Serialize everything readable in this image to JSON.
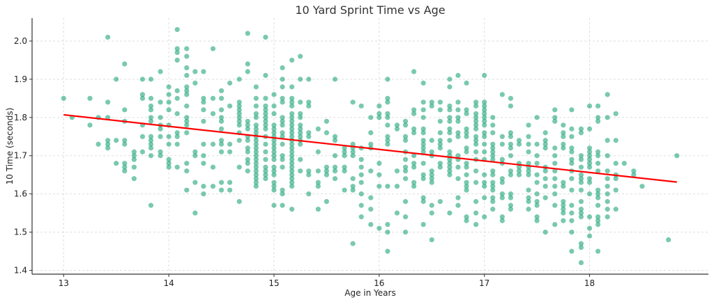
{
  "chart_data": {
    "type": "scatter",
    "title": "10 Yard Sprint Time vs Age",
    "xlabel": "Age in Years",
    "ylabel": "10 Time (seconds)",
    "xlim": [
      12.7,
      19.13
    ],
    "ylim": [
      1.39,
      2.06
    ],
    "xticks": [
      13,
      14,
      15,
      16,
      17,
      18
    ],
    "yticks": [
      1.4,
      1.5,
      1.6,
      1.7,
      1.8,
      1.9,
      2.0
    ],
    "grid": true,
    "point_color": "#1fa57a",
    "line_color": "#ff0000",
    "regression": {
      "x": [
        13.0,
        18.83
      ],
      "y": [
        1.807,
        1.631
      ]
    },
    "columns": [
      {
        "x": 13.0,
        "y": [
          1.85
        ]
      },
      {
        "x": 13.08,
        "y": [
          1.8
        ]
      },
      {
        "x": 13.25,
        "y": [
          1.85,
          1.78
        ]
      },
      {
        "x": 13.33,
        "y": [
          1.8,
          1.73
        ]
      },
      {
        "x": 13.42,
        "y": [
          2.01,
          1.84,
          1.8,
          1.74,
          1.73,
          1.72
        ]
      },
      {
        "x": 13.5,
        "y": [
          1.9,
          1.74,
          1.68
        ]
      },
      {
        "x": 13.58,
        "y": [
          1.94,
          1.82,
          1.79,
          1.74,
          1.73,
          1.68,
          1.67,
          1.66
        ]
      },
      {
        "x": 13.67,
        "y": [
          1.71,
          1.7,
          1.69,
          1.67,
          1.64
        ]
      },
      {
        "x": 13.75,
        "y": [
          1.9,
          1.86,
          1.85,
          1.78,
          1.75,
          1.71
        ]
      },
      {
        "x": 13.83,
        "y": [
          1.9,
          1.85,
          1.83,
          1.82,
          1.8,
          1.79,
          1.75,
          1.74,
          1.73,
          1.72,
          1.7,
          1.57
        ]
      },
      {
        "x": 13.92,
        "y": [
          1.92,
          1.84,
          1.8,
          1.78,
          1.77,
          1.75,
          1.71,
          1.7
        ]
      },
      {
        "x": 14.0,
        "y": [
          1.88,
          1.86,
          1.84,
          1.82,
          1.78,
          1.75,
          1.73,
          1.69,
          1.68,
          1.67
        ]
      },
      {
        "x": 14.08,
        "y": [
          2.03,
          1.98,
          1.97,
          1.95,
          1.87,
          1.85,
          1.81,
          1.76,
          1.75,
          1.73,
          1.67
        ]
      },
      {
        "x": 14.17,
        "y": [
          1.98,
          1.96,
          1.93,
          1.91,
          1.88,
          1.87,
          1.86,
          1.83,
          1.8,
          1.79,
          1.78,
          1.76,
          1.68,
          1.66,
          1.61
        ]
      },
      {
        "x": 14.25,
        "y": [
          1.92,
          1.89,
          1.71,
          1.7,
          1.63,
          1.55
        ]
      },
      {
        "x": 14.33,
        "y": [
          1.92,
          1.85,
          1.84,
          1.82,
          1.79,
          1.73,
          1.7,
          1.68,
          1.62,
          1.6
        ]
      },
      {
        "x": 14.42,
        "y": [
          1.98,
          1.85,
          1.81,
          1.73,
          1.67,
          1.62
        ]
      },
      {
        "x": 14.5,
        "y": [
          1.87,
          1.85,
          1.82,
          1.8,
          1.79,
          1.77,
          1.74,
          1.73,
          1.71,
          1.63,
          1.61
        ]
      },
      {
        "x": 14.58,
        "y": [
          1.89,
          1.83,
          1.73,
          1.71,
          1.63,
          1.61
        ]
      },
      {
        "x": 14.67,
        "y": [
          1.9,
          1.84,
          1.83,
          1.82,
          1.81,
          1.8,
          1.79,
          1.78,
          1.76,
          1.74,
          1.67,
          1.58
        ]
      },
      {
        "x": 14.75,
        "y": [
          2.02,
          1.94,
          1.92,
          1.79,
          1.78,
          1.77,
          1.75,
          1.74,
          1.72,
          1.71,
          1.69,
          1.68,
          1.66
        ]
      },
      {
        "x": 14.83,
        "y": [
          1.88,
          1.85,
          1.83,
          1.81,
          1.8,
          1.78,
          1.77,
          1.76,
          1.75,
          1.74,
          1.73,
          1.72,
          1.71,
          1.7,
          1.69,
          1.68,
          1.67,
          1.66,
          1.65,
          1.64,
          1.63,
          1.62
        ]
      },
      {
        "x": 14.92,
        "y": [
          2.01,
          1.91,
          1.85,
          1.83,
          1.82,
          1.81,
          1.8,
          1.79,
          1.78,
          1.77,
          1.75,
          1.73,
          1.71,
          1.69,
          1.67,
          1.66,
          1.65,
          1.64
        ]
      },
      {
        "x": 15.0,
        "y": [
          1.86,
          1.83,
          1.81,
          1.78,
          1.77,
          1.76,
          1.75,
          1.74,
          1.73,
          1.72,
          1.71,
          1.7,
          1.69,
          1.67,
          1.66,
          1.65,
          1.63,
          1.62,
          1.61,
          1.57
        ]
      },
      {
        "x": 15.08,
        "y": [
          1.93,
          1.9,
          1.88,
          1.85,
          1.84,
          1.8,
          1.79,
          1.78,
          1.76,
          1.75,
          1.73,
          1.7,
          1.69,
          1.67,
          1.61,
          1.6,
          1.57
        ]
      },
      {
        "x": 15.17,
        "y": [
          1.95,
          1.88,
          1.85,
          1.84,
          1.83,
          1.81,
          1.8,
          1.79,
          1.78,
          1.77,
          1.76,
          1.75,
          1.74,
          1.73,
          1.72,
          1.71,
          1.7,
          1.69,
          1.68,
          1.67,
          1.66,
          1.65,
          1.64,
          1.63,
          1.62,
          1.56
        ]
      },
      {
        "x": 15.25,
        "y": [
          1.96,
          1.9,
          1.84,
          1.81,
          1.8,
          1.78,
          1.77,
          1.76,
          1.75,
          1.74,
          1.73,
          1.69,
          1.66
        ]
      },
      {
        "x": 15.33,
        "y": [
          1.9,
          1.84,
          1.83,
          1.76,
          1.75,
          1.66,
          1.65,
          1.6
        ]
      },
      {
        "x": 15.42,
        "y": [
          1.77,
          1.71,
          1.66,
          1.63,
          1.62,
          1.56
        ]
      },
      {
        "x": 15.5,
        "y": [
          1.79,
          1.76,
          1.67,
          1.66,
          1.65,
          1.58
        ]
      },
      {
        "x": 15.58,
        "y": [
          1.9,
          1.75,
          1.74,
          1.7,
          1.67,
          1.66,
          1.64
        ]
      },
      {
        "x": 15.67,
        "y": [
          1.72,
          1.71,
          1.7,
          1.67,
          1.66,
          1.61
        ]
      },
      {
        "x": 15.75,
        "y": [
          1.84,
          1.73,
          1.72,
          1.71,
          1.7,
          1.64,
          1.62,
          1.61,
          1.47
        ]
      },
      {
        "x": 15.83,
        "y": [
          1.83,
          1.72,
          1.69,
          1.67,
          1.65,
          1.63,
          1.6,
          1.57,
          1.54
        ]
      },
      {
        "x": 15.92,
        "y": [
          1.8,
          1.76,
          1.73,
          1.72,
          1.66,
          1.59,
          1.56,
          1.52
        ]
      },
      {
        "x": 16.0,
        "y": [
          1.83,
          1.81,
          1.8,
          1.68,
          1.65,
          1.62,
          1.51
        ]
      },
      {
        "x": 16.08,
        "y": [
          1.9,
          1.85,
          1.84,
          1.81,
          1.8,
          1.78,
          1.75,
          1.74,
          1.73,
          1.62,
          1.52,
          1.5,
          1.45
        ]
      },
      {
        "x": 16.17,
        "y": [
          1.78,
          1.77,
          1.66,
          1.62,
          1.55
        ]
      },
      {
        "x": 16.25,
        "y": [
          1.79,
          1.78,
          1.75,
          1.74,
          1.71,
          1.69,
          1.67,
          1.66,
          1.64,
          1.58,
          1.54,
          1.5
        ]
      },
      {
        "x": 16.33,
        "y": [
          1.92,
          1.82,
          1.81,
          1.77,
          1.76,
          1.7,
          1.68,
          1.67,
          1.63,
          1.62
        ]
      },
      {
        "x": 16.42,
        "y": [
          1.89,
          1.84,
          1.82,
          1.8,
          1.77,
          1.76,
          1.74,
          1.73,
          1.72,
          1.71,
          1.68,
          1.65,
          1.64,
          1.59,
          1.58,
          1.52
        ]
      },
      {
        "x": 16.5,
        "y": [
          1.84,
          1.83,
          1.74,
          1.71,
          1.7,
          1.66,
          1.65,
          1.64,
          1.63,
          1.57,
          1.55,
          1.48
        ]
      },
      {
        "x": 16.58,
        "y": [
          1.84,
          1.82,
          1.79,
          1.76,
          1.74,
          1.73,
          1.72,
          1.68,
          1.67,
          1.58
        ]
      },
      {
        "x": 16.67,
        "y": [
          1.9,
          1.88,
          1.83,
          1.82,
          1.8,
          1.79,
          1.77,
          1.76,
          1.74,
          1.71,
          1.7,
          1.69,
          1.68,
          1.67,
          1.66,
          1.65,
          1.55
        ]
      },
      {
        "x": 16.75,
        "y": [
          1.91,
          1.84,
          1.82,
          1.8,
          1.79,
          1.76,
          1.75,
          1.7,
          1.69,
          1.67,
          1.64,
          1.59,
          1.57
        ]
      },
      {
        "x": 16.83,
        "y": [
          1.89,
          1.82,
          1.81,
          1.77,
          1.76,
          1.75,
          1.72,
          1.71,
          1.68,
          1.67,
          1.65,
          1.63,
          1.62,
          1.61,
          1.54,
          1.53
        ]
      },
      {
        "x": 16.92,
        "y": [
          1.84,
          1.83,
          1.81,
          1.8,
          1.79,
          1.78,
          1.77,
          1.75,
          1.74,
          1.73,
          1.71,
          1.69,
          1.66,
          1.63,
          1.58,
          1.55,
          1.52
        ]
      },
      {
        "x": 17.0,
        "y": [
          1.91,
          1.84,
          1.83,
          1.82,
          1.81,
          1.8,
          1.79,
          1.78,
          1.76,
          1.75,
          1.73,
          1.71,
          1.69,
          1.65,
          1.63,
          1.62,
          1.59,
          1.54
        ]
      },
      {
        "x": 17.08,
        "y": [
          1.8,
          1.78,
          1.76,
          1.73,
          1.72,
          1.71,
          1.7,
          1.69,
          1.66,
          1.65,
          1.63,
          1.62,
          1.61,
          1.59,
          1.58,
          1.56
        ]
      },
      {
        "x": 17.17,
        "y": [
          1.86,
          1.75,
          1.73,
          1.69,
          1.68,
          1.64,
          1.63,
          1.6,
          1.59,
          1.54,
          1.53
        ]
      },
      {
        "x": 17.25,
        "y": [
          1.85,
          1.83,
          1.76,
          1.75,
          1.73,
          1.72,
          1.7,
          1.66,
          1.65,
          1.6,
          1.59,
          1.57,
          1.56
        ]
      },
      {
        "x": 17.33,
        "y": [
          1.74,
          1.73,
          1.68,
          1.67,
          1.66,
          1.65
        ]
      },
      {
        "x": 17.42,
        "y": [
          1.78,
          1.75,
          1.73,
          1.71,
          1.68,
          1.67,
          1.66,
          1.65,
          1.61,
          1.59,
          1.58,
          1.56
        ]
      },
      {
        "x": 17.5,
        "y": [
          1.8,
          1.73,
          1.7,
          1.68,
          1.65,
          1.63,
          1.6,
          1.58,
          1.57,
          1.54,
          1.53
        ]
      },
      {
        "x": 17.58,
        "y": [
          1.76,
          1.74,
          1.73,
          1.72,
          1.67,
          1.66,
          1.64,
          1.62,
          1.59,
          1.5
        ]
      },
      {
        "x": 17.67,
        "y": [
          1.82,
          1.8,
          1.79,
          1.72,
          1.7,
          1.68,
          1.66,
          1.64,
          1.62,
          1.6,
          1.57,
          1.52
        ]
      },
      {
        "x": 17.75,
        "y": [
          1.78,
          1.76,
          1.75,
          1.73,
          1.72,
          1.63,
          1.62,
          1.58,
          1.57,
          1.56,
          1.55,
          1.53
        ]
      },
      {
        "x": 17.83,
        "y": [
          1.82,
          1.77,
          1.75,
          1.72,
          1.71,
          1.69,
          1.68,
          1.66,
          1.64,
          1.61,
          1.57,
          1.55,
          1.53,
          1.5,
          1.45
        ]
      },
      {
        "x": 17.92,
        "y": [
          1.77,
          1.76,
          1.7,
          1.69,
          1.67,
          1.65,
          1.64,
          1.63,
          1.61,
          1.58,
          1.56,
          1.55,
          1.54,
          1.47,
          1.46,
          1.42
        ]
      },
      {
        "x": 18.0,
        "y": [
          1.83,
          1.77,
          1.72,
          1.71,
          1.7,
          1.69,
          1.68,
          1.67,
          1.64,
          1.63,
          1.6,
          1.54,
          1.51,
          1.49
        ]
      },
      {
        "x": 18.08,
        "y": [
          1.83,
          1.8,
          1.79,
          1.71,
          1.7,
          1.68,
          1.66,
          1.61,
          1.6,
          1.59,
          1.57,
          1.54,
          1.53,
          1.52,
          1.45
        ]
      },
      {
        "x": 18.17,
        "y": [
          1.86,
          1.8,
          1.74,
          1.7,
          1.66,
          1.64,
          1.62,
          1.6,
          1.58,
          1.56,
          1.54
        ]
      },
      {
        "x": 18.25,
        "y": [
          1.81,
          1.74,
          1.68,
          1.65,
          1.64,
          1.61,
          1.56
        ]
      },
      {
        "x": 18.33,
        "y": [
          1.68
        ]
      },
      {
        "x": 18.42,
        "y": [
          1.66,
          1.65
        ]
      },
      {
        "x": 18.5,
        "y": [
          1.62
        ]
      },
      {
        "x": 18.75,
        "y": [
          1.48
        ]
      },
      {
        "x": 18.83,
        "y": [
          1.7
        ]
      }
    ]
  }
}
